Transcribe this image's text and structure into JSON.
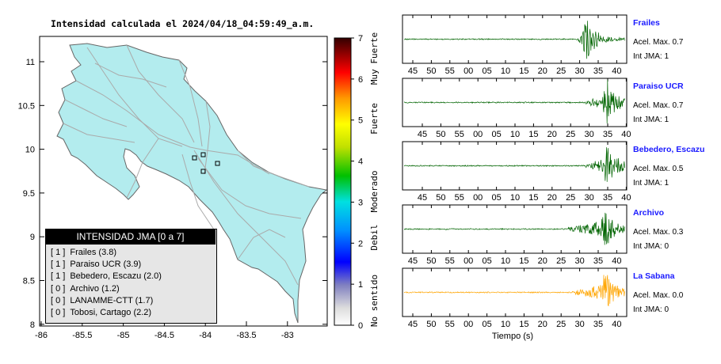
{
  "map": {
    "title": "Intensidad calculada el 2024/04/18_04:59:49_a.m.",
    "x_ticks": [
      "-86",
      "-85.5",
      "-85",
      "-84.5",
      "-84",
      "-83.5",
      "-83"
    ],
    "y_ticks": [
      "11",
      "10.5",
      "10",
      "9.5",
      "9",
      "8.5",
      "8"
    ],
    "land_color": "#b3ecee",
    "road_color": "#aaaaaa"
  },
  "legend": {
    "header": "INTENSIDAD JMA [0 a 7]",
    "items": [
      {
        "level": "[ 1 ]",
        "name": "Frailes (3.8)"
      },
      {
        "level": "[ 1 ]",
        "name": "Paraiso UCR (3.9)"
      },
      {
        "level": "[ 1 ]",
        "name": "Bebedero, Escazu (2.0)"
      },
      {
        "level": "[ 0 ]",
        "name": "Archivo (1.2)"
      },
      {
        "level": "[ 0 ]",
        "name": "LANAMME-CTT (1.7)"
      },
      {
        "level": "[ 0 ]",
        "name": "Tobosi, Cartago (2.2)"
      }
    ]
  },
  "colorbar": {
    "ticks": [
      "7",
      "6",
      "5",
      "4",
      "3",
      "2",
      "1",
      "0"
    ],
    "labels": [
      "Muy Fuerte",
      "Fuerte",
      "Moderado",
      "Debil",
      "No sentido"
    ]
  },
  "chart_data": {
    "type": "line",
    "xlabel": "Tiempo (s)",
    "x_tick_labels": [
      "45",
      "50",
      "55",
      "00",
      "05",
      "10",
      "15",
      "20",
      "25",
      "30",
      "35",
      "40"
    ],
    "series": [
      {
        "name": "Frailes",
        "amax": "Acel. Max. 0.7",
        "jma": "Int JMA: 1",
        "color": "#006400",
        "onset": 29,
        "peak": 32,
        "amp": 0.9
      },
      {
        "name": "Paraiso UCR",
        "amax": "Acel. Max. 0.7",
        "jma": "Int JMA: 1",
        "color": "#006400",
        "onset": 29,
        "peak": 35,
        "amp": 0.9
      },
      {
        "name": "Bebedero, Escazu",
        "amax": "Acel. Max. 0.5",
        "jma": "Int JMA: 1",
        "color": "#006400",
        "onset": 29,
        "peak": 35,
        "amp": 0.95
      },
      {
        "name": "Archivo",
        "amax": "Acel. Max. 0.3",
        "jma": "Int JMA: 0",
        "color": "#006400",
        "onset": 27,
        "peak": 37,
        "amp": 0.9
      },
      {
        "name": "La Sabana",
        "amax": "Acel. Max. 0.0",
        "jma": "Int JMA: 0",
        "color": "#ffa500",
        "onset": 28,
        "peak": 37,
        "amp": 0.95
      }
    ]
  }
}
